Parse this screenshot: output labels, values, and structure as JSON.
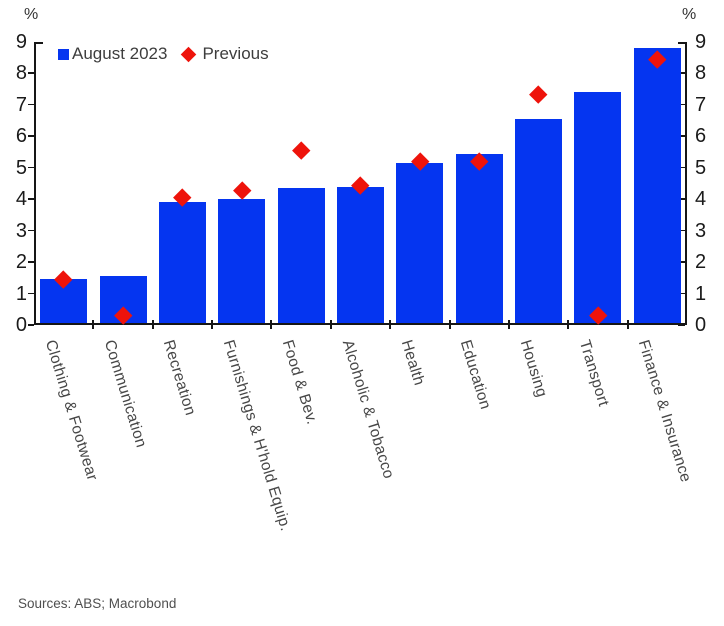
{
  "chart_data": {
    "type": "bar",
    "title": "",
    "categories": [
      "Clothing & Footwear",
      "Communication",
      "Recreation",
      "Furnishings & H'hold Equip.",
      "Food & Bev.",
      "Alcoholic & Tobacco",
      "Health",
      "Education",
      "Housing",
      "Transport",
      "Finance & Insurance"
    ],
    "series": [
      {
        "name": "August 2023",
        "type": "bar",
        "color": "#0535f0",
        "values": [
          1.45,
          1.55,
          3.9,
          4.0,
          4.35,
          4.4,
          5.15,
          5.45,
          6.55,
          7.4,
          8.8
        ]
      },
      {
        "name": "Previous",
        "type": "scatter",
        "marker": "diamond",
        "color": "#ee130b",
        "values": [
          1.45,
          0.3,
          4.05,
          4.3,
          5.55,
          4.45,
          5.2,
          5.2,
          7.35,
          0.3,
          8.45
        ]
      }
    ],
    "ylim": [
      0,
      9
    ],
    "yticks": [
      0,
      1,
      2,
      3,
      4,
      5,
      6,
      7,
      8,
      9
    ],
    "ylabel": "%",
    "grid": false,
    "legend_position": "top-left"
  },
  "axis": {
    "left_unit": "%",
    "right_unit": "%"
  },
  "legend": {
    "items": [
      {
        "label": "August 2023",
        "marker": "square",
        "color": "#0535f0"
      },
      {
        "label": "Previous",
        "marker": "diamond",
        "color": "#ee130b"
      }
    ]
  },
  "footer": {
    "sources": "Sources: ABS; Macrobond"
  }
}
